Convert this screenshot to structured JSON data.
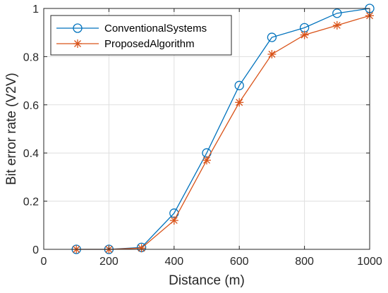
{
  "chart_data": {
    "type": "line",
    "xlabel": "Distance (m)",
    "ylabel": "Bit error rate (V2V)",
    "xlim": [
      0,
      1000
    ],
    "ylim": [
      0,
      1
    ],
    "xticks": [
      0,
      200,
      400,
      600,
      800,
      1000
    ],
    "yticks": [
      0,
      0.2,
      0.4,
      0.6,
      0.8,
      1
    ],
    "xtick_labels": [
      "0",
      "200",
      "400",
      "600",
      "800",
      "1000"
    ],
    "ytick_labels": [
      "0",
      "0.2",
      "0.4",
      "0.6",
      "0.8",
      "1"
    ],
    "grid": true,
    "legend_position": "top-left",
    "x": [
      100,
      200,
      300,
      400,
      500,
      600,
      700,
      800,
      900,
      1000
    ],
    "series": [
      {
        "name": "ConventionalSystems",
        "marker": "circle",
        "color": "#0072BD",
        "values": [
          0,
          0,
          0.008,
          0.15,
          0.4,
          0.68,
          0.88,
          0.92,
          0.98,
          1.0
        ]
      },
      {
        "name": "ProposedAlgorithm",
        "marker": "asterisk",
        "color": "#D95319",
        "values": [
          0,
          0,
          0.005,
          0.12,
          0.37,
          0.61,
          0.81,
          0.89,
          0.93,
          0.97
        ]
      }
    ]
  }
}
